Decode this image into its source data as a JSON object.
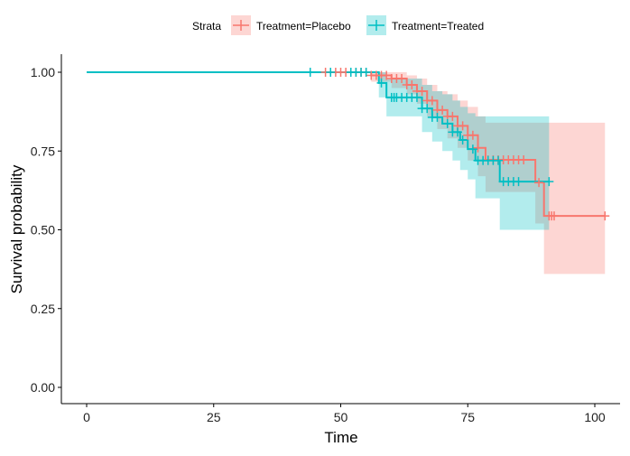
{
  "chart_data": {
    "type": "line",
    "subtype": "kaplan-meier",
    "title": "",
    "xlabel": "Time",
    "ylabel": "Survival probability",
    "xlim": [
      0,
      102
    ],
    "ylim": [
      0,
      1
    ],
    "xticks": [
      0,
      25,
      50,
      75,
      100
    ],
    "yticks": [
      0,
      0.25,
      0.5,
      0.75,
      1
    ],
    "ytick_labels": [
      "0.00",
      "0.25",
      "0.50",
      "0.75",
      "1.00"
    ],
    "legend": {
      "title": "Strata",
      "position": "top"
    },
    "series": [
      {
        "name": "Treatment=Placebo",
        "color": "#F8766D",
        "end": 102,
        "steps": [
          {
            "t": 0,
            "s": 1,
            "lo": 1,
            "hi": 1
          },
          {
            "t": 56,
            "s": 0.99,
            "lo": 0.97,
            "hi": 1
          },
          {
            "t": 60,
            "s": 0.98,
            "lo": 0.95,
            "hi": 1
          },
          {
            "t": 63,
            "s": 0.96,
            "lo": 0.93,
            "hi": 0.99
          },
          {
            "t": 65,
            "s": 0.94,
            "lo": 0.9,
            "hi": 0.98
          },
          {
            "t": 67,
            "s": 0.91,
            "lo": 0.86,
            "hi": 0.96
          },
          {
            "t": 69,
            "s": 0.88,
            "lo": 0.82,
            "hi": 0.94
          },
          {
            "t": 71,
            "s": 0.86,
            "lo": 0.79,
            "hi": 0.93
          },
          {
            "t": 73,
            "s": 0.83,
            "lo": 0.76,
            "hi": 0.91
          },
          {
            "t": 75,
            "s": 0.8,
            "lo": 0.72,
            "hi": 0.89
          },
          {
            "t": 77,
            "s": 0.76,
            "lo": 0.67,
            "hi": 0.86
          },
          {
            "t": 78.5,
            "s": 0.722,
            "lo": 0.62,
            "hi": 0.84
          },
          {
            "t": 88.3,
            "s": 0.65,
            "lo": 0.52,
            "hi": 0.84
          },
          {
            "t": 90,
            "s": 0.544,
            "lo": 0.36,
            "hi": 0.84
          }
        ],
        "censor": [
          47,
          48,
          49,
          50,
          51,
          53,
          54,
          55,
          56,
          57,
          58,
          59,
          60,
          61,
          62,
          63,
          64,
          65,
          66,
          67,
          68,
          69,
          70,
          71,
          72,
          73,
          74,
          75,
          76,
          77,
          79,
          80,
          81,
          82,
          83,
          84,
          85,
          86,
          89,
          91,
          91.5,
          92,
          102
        ]
      },
      {
        "name": "Treatment=Treated",
        "color": "#00BFC4",
        "end": 91,
        "steps": [
          {
            "t": 0,
            "s": 1,
            "lo": 1,
            "hi": 1
          },
          {
            "t": 57.5,
            "s": 0.966,
            "lo": 0.92,
            "hi": 1
          },
          {
            "t": 59,
            "s": 0.92,
            "lo": 0.86,
            "hi": 0.98
          },
          {
            "t": 66,
            "s": 0.885,
            "lo": 0.81,
            "hi": 0.96
          },
          {
            "t": 68,
            "s": 0.857,
            "lo": 0.78,
            "hi": 0.94
          },
          {
            "t": 70,
            "s": 0.837,
            "lo": 0.75,
            "hi": 0.93
          },
          {
            "t": 72,
            "s": 0.81,
            "lo": 0.72,
            "hi": 0.91
          },
          {
            "t": 73.5,
            "s": 0.785,
            "lo": 0.69,
            "hi": 0.89
          },
          {
            "t": 75,
            "s": 0.756,
            "lo": 0.66,
            "hi": 0.87
          },
          {
            "t": 76.5,
            "s": 0.72,
            "lo": 0.6,
            "hi": 0.86
          },
          {
            "t": 81.3,
            "s": 0.653,
            "lo": 0.5,
            "hi": 0.86
          }
        ],
        "censor": [
          44,
          48,
          52,
          53,
          54,
          55,
          58,
          60,
          60.5,
          61,
          62,
          63,
          64,
          65,
          66,
          67,
          68,
          69,
          71,
          72,
          73,
          74,
          76,
          77,
          78,
          79,
          80,
          81,
          82,
          83,
          84,
          85,
          91
        ]
      }
    ]
  }
}
